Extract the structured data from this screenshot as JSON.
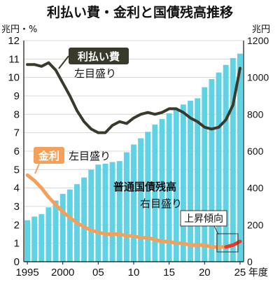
{
  "chart_data": {
    "type": "bar+line",
    "title": "利払い費・金利と国債残高推移",
    "left_axis": {
      "unit": "兆円・%",
      "ticks": [
        "0",
        "1",
        "2",
        "3",
        "4",
        "5",
        "6",
        "7",
        "8",
        "9",
        "10",
        "11",
        "12"
      ],
      "range": [
        0,
        12
      ]
    },
    "right_axis": {
      "unit": "兆円",
      "ticks": [
        "0",
        "200",
        "400",
        "600",
        "800",
        "1000",
        "1200"
      ],
      "range": [
        0,
        1200
      ]
    },
    "x_axis": {
      "years": [
        1995,
        1996,
        1997,
        1998,
        1999,
        2000,
        2001,
        2002,
        2003,
        2004,
        2005,
        2006,
        2007,
        2008,
        2009,
        2010,
        2011,
        2012,
        2013,
        2014,
        2015,
        2016,
        2017,
        2018,
        2019,
        2020,
        2021,
        2022,
        2023,
        2024,
        2025
      ],
      "tick_labels": [
        "1995",
        "2000",
        "05",
        "10",
        "15",
        "20",
        "25"
      ],
      "tick_years": [
        1995,
        2000,
        2005,
        2010,
        2015,
        2020,
        2025
      ],
      "suffix": "年度"
    },
    "series": [
      {
        "name": "利払い費",
        "axis": "left",
        "sub_label": "左目盛り",
        "color": "#3a3a2c",
        "values": [
          10.7,
          10.7,
          10.6,
          10.8,
          10.4,
          9.7,
          9.0,
          8.2,
          7.6,
          7.2,
          7.0,
          7.0,
          7.4,
          7.6,
          7.5,
          7.8,
          8.0,
          8.1,
          8.0,
          8.1,
          8.3,
          8.3,
          8.1,
          7.8,
          7.6,
          7.3,
          7.2,
          7.3,
          7.7,
          8.5,
          10.5
        ]
      },
      {
        "name": "金利",
        "axis": "left",
        "sub_label": "左目盛り",
        "color": "#f5a05a",
        "values": [
          4.7,
          4.4,
          4.0,
          3.5,
          3.1,
          2.7,
          2.4,
          2.1,
          1.9,
          1.7,
          1.6,
          1.5,
          1.5,
          1.5,
          1.4,
          1.4,
          1.3,
          1.3,
          1.2,
          1.1,
          1.1,
          1.0,
          1.0,
          0.9,
          0.9,
          0.9,
          0.8,
          0.8,
          0.8,
          0.9,
          1.1
        ]
      },
      {
        "name": "普通国債残高",
        "axis": "right",
        "sub_label": "右目盛り",
        "color": "#5fd3e4",
        "values": [
          225,
          245,
          258,
          295,
          332,
          368,
          392,
          421,
          457,
          499,
          527,
          532,
          541,
          546,
          594,
          636,
          670,
          705,
          744,
          774,
          805,
          831,
          853,
          874,
          887,
          947,
          991,
          1027,
          1068,
          1105,
          1129
        ]
      }
    ],
    "annotation": {
      "text": "上昇傾向",
      "color": "#e8392a"
    }
  }
}
